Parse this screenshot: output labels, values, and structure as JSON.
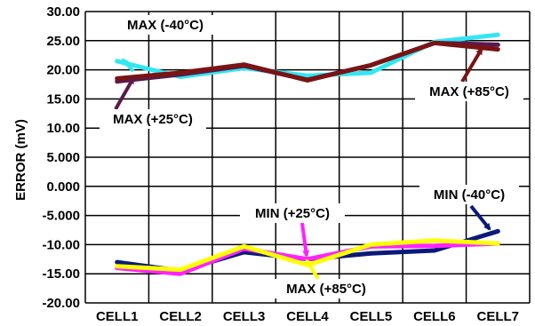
{
  "chart_data": {
    "type": "line",
    "title": "",
    "xlabel": "",
    "ylabel": "ERROR (mV)",
    "categories": [
      "CELL1",
      "CELL2",
      "CELL3",
      "CELL4",
      "CELL5",
      "CELL6",
      "CELL7"
    ],
    "ylim": [
      -20,
      30
    ],
    "yticks": [
      "30.00",
      "25.00",
      "20.00",
      "15.00",
      "10.00",
      "5.000",
      "0.000",
      "-5.000",
      "-10.00",
      "-15.00",
      "-20.00"
    ],
    "grid": true,
    "series": [
      {
        "name": "MAX (-40°C)",
        "color": "#33e6f2",
        "values": [
          21.5,
          18.8,
          20.3,
          19.0,
          19.5,
          24.8,
          26.0
        ]
      },
      {
        "name": "MAX (+25°C)",
        "color": "#5a1a4a",
        "values": [
          18.0,
          19.2,
          20.7,
          18.3,
          20.8,
          24.6,
          24.3
        ]
      },
      {
        "name": "MAX (+85°C)",
        "color": "#7a1414",
        "values": [
          18.5,
          19.5,
          20.9,
          18.2,
          20.8,
          24.6,
          23.5
        ]
      },
      {
        "name": "MIN (-40°C)",
        "color": "#0a1a7a",
        "values": [
          -13.0,
          -14.5,
          -11.3,
          -12.5,
          -11.5,
          -11.0,
          -7.7
        ]
      },
      {
        "name": "MIN (+25°C)",
        "color": "#ff22ff",
        "values": [
          -14.0,
          -15.0,
          -10.7,
          -12.5,
          -10.3,
          -10.2,
          -9.8
        ]
      },
      {
        "name": "MAX (+85°C)",
        "color": "#ffff00",
        "values": [
          -13.7,
          -14.3,
          -10.3,
          -13.5,
          -10.0,
          -9.3,
          -9.8
        ]
      }
    ],
    "annotations": [
      {
        "text": "MAX (-40°C)",
        "series": 0
      },
      {
        "text": "MAX (+25°C)",
        "series": 1
      },
      {
        "text": "MAX (+85°C)",
        "series": 2
      },
      {
        "text": "MIN (-40°C)",
        "series": 3
      },
      {
        "text": "MIN (+25°C)",
        "series": 4
      },
      {
        "text": "MAX (+85°C)",
        "series": 5
      }
    ]
  }
}
